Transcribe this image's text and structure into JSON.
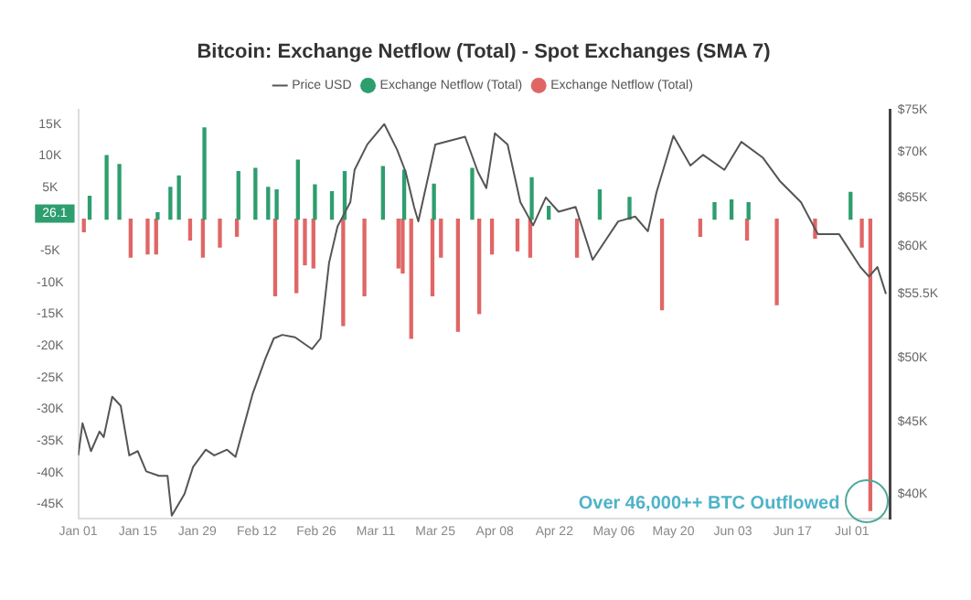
{
  "chart_data": {
    "type": "bar",
    "title": "Bitcoin: Exchange Netflow (Total) - Spot Exchanges (SMA 7)",
    "legend": "top",
    "marker": "none",
    "log": "y2",
    "xlim": [
      "--01-01",
      "--07-10"
    ],
    "xticks": [
      {
        "value": "--01-01",
        "label": "Jan 01"
      },
      {
        "value": "--01-15",
        "label": "Jan 15"
      },
      {
        "value": "--01-29",
        "label": "Jan 29"
      },
      {
        "value": "--02-12",
        "label": "Feb 12"
      },
      {
        "value": "--02-26",
        "label": "Feb 26"
      },
      {
        "value": "--03-11",
        "label": "Mar 11"
      },
      {
        "value": "--03-25",
        "label": "Mar 25"
      },
      {
        "value": "--04-08",
        "label": "Apr 08"
      },
      {
        "value": "--04-22",
        "label": "Apr 22"
      },
      {
        "value": "--05-06",
        "label": "May 06"
      },
      {
        "value": "--05-20",
        "label": "May 20"
      },
      {
        "value": "--06-03",
        "label": "Jun 03"
      },
      {
        "value": "--06-17",
        "label": "Jun 17"
      },
      {
        "value": "--07-01",
        "label": "Jul 01"
      }
    ],
    "ylim": [
      -47300,
      17200
    ],
    "yticks": [
      {
        "value": 15000,
        "label": "15K"
      },
      {
        "value": 10000,
        "label": "10K"
      },
      {
        "value": 5000,
        "label": "5K"
      },
      {
        "value": -5000,
        "label": "-5K"
      },
      {
        "value": -10000,
        "label": "-10K"
      },
      {
        "value": -15000,
        "label": "-15K"
      },
      {
        "value": -20000,
        "label": "-20K"
      },
      {
        "value": -25000,
        "label": "-25K"
      },
      {
        "value": -30000,
        "label": "-30K"
      },
      {
        "value": -35000,
        "label": "-35K"
      },
      {
        "value": -40000,
        "label": "-40K"
      },
      {
        "value": -45000,
        "label": "-45K"
      }
    ],
    "y2lim": [
      38400,
      75000
    ],
    "y2ticks": [
      {
        "value": 40000,
        "label": "$40K"
      },
      {
        "value": 45000,
        "label": "$45K"
      },
      {
        "value": 50000,
        "label": "$50K"
      },
      {
        "value": 55500,
        "label": "$55.5K"
      },
      {
        "value": 60000,
        "label": "$60K"
      },
      {
        "value": 65000,
        "label": "$65K"
      },
      {
        "value": 70000,
        "label": "$70K"
      },
      {
        "value": 75000,
        "label": "$75K"
      }
    ],
    "annotations": [
      {
        "text": "Over 46,000++ BTC Outflowed",
        "x": "--07-05",
        "y": -46000
      },
      "26.1"
    ],
    "series": [
      {
        "name": "Price USD",
        "type": "line",
        "axis": "y2",
        "color": "#555555",
        "x": [
          "--01-01",
          "--01-02",
          "--01-04",
          "--01-06",
          "--01-07",
          "--01-09",
          "--01-11",
          "--01-13",
          "--01-15",
          "--01-17",
          "--01-20",
          "--01-22",
          "--01-23",
          "--01-26",
          "--01-28",
          "--01-31",
          "--02-02",
          "--02-05",
          "--02-07",
          "--02-11",
          "--02-14",
          "--02-16",
          "--02-18",
          "--02-21",
          "--02-25",
          "--02-27",
          "--02-29",
          "--03-02",
          "--03-05",
          "--03-06",
          "--03-09",
          "--03-13",
          "--03-16",
          "--03-18",
          "--03-20",
          "--03-21",
          "--03-25",
          "--04-01",
          "--04-04",
          "--04-06",
          "--04-08",
          "--04-11",
          "--04-14",
          "--04-17",
          "--04-20",
          "--04-23",
          "--04-27",
          "--05-01",
          "--05-07",
          "--05-11",
          "--05-14",
          "--05-16",
          "--05-20",
          "--05-24",
          "--05-27",
          "--06-01",
          "--06-05",
          "--06-10",
          "--06-14",
          "--06-19",
          "--06-23",
          "--06-28",
          "--07-03",
          "--07-05",
          "--07-07",
          "--07-09"
        ],
        "values": [
          42600,
          44900,
          42900,
          44300,
          43900,
          46900,
          46200,
          42600,
          42900,
          41500,
          41200,
          41200,
          38600,
          40000,
          41800,
          43000,
          42600,
          43000,
          42500,
          47100,
          49900,
          51600,
          51900,
          51700,
          50700,
          51600,
          58400,
          62000,
          64500,
          68000,
          70900,
          73300,
          70300,
          67800,
          64000,
          62500,
          70900,
          71800,
          67800,
          66000,
          72200,
          70900,
          64500,
          62100,
          65000,
          63500,
          64000,
          58700,
          62500,
          63000,
          61500,
          65500,
          71900,
          68500,
          69700,
          68000,
          71200,
          69400,
          66800,
          64500,
          61200,
          61200,
          58000,
          57100,
          58000,
          55500
        ]
      },
      {
        "name": "Exchange Netflow (Total)",
        "color": "#2e9e6e",
        "x": [
          "--01-04",
          "--01-08",
          "--01-11",
          "--01-20",
          "--01-23",
          "--01-25",
          "--01-31",
          "--02-08",
          "--02-12",
          "--02-15",
          "--02-17",
          "--02-22",
          "--02-26",
          "--03-01",
          "--03-04",
          "--03-13",
          "--03-18",
          "--03-25",
          "--04-03",
          "--04-17",
          "--04-21",
          "--05-03",
          "--05-10",
          "--05-30",
          "--06-03",
          "--06-07",
          "--07-01"
        ],
        "values": [
          3600,
          10000,
          8600,
          1000,
          5000,
          6800,
          14400,
          7500,
          8000,
          5000,
          4600,
          9300,
          5400,
          4300,
          7500,
          8300,
          7700,
          5500,
          8000,
          6500,
          2000,
          4600,
          3400,
          2600,
          3000,
          2600,
          4200
        ]
      },
      {
        "name": "Exchange Netflow (Total)",
        "color": "#e06666",
        "x": [
          "--01-02",
          "--01-13",
          "--01-17",
          "--01-19",
          "--01-27",
          "--01-30",
          "--02-03",
          "--02-07",
          "--02-16",
          "--02-21",
          "--02-23",
          "--02-25",
          "--03-03",
          "--03-08",
          "--03-16",
          "--03-17",
          "--03-19",
          "--03-24",
          "--03-26",
          "--03-30",
          "--04-04",
          "--04-07",
          "--04-13",
          "--04-16",
          "--04-27",
          "--05-17",
          "--05-26",
          "--06-06",
          "--06-13",
          "--06-22",
          "--07-03",
          "--07-05"
        ],
        "values": [
          -2000,
          -6000,
          -5500,
          -5500,
          -3300,
          -6000,
          -4400,
          -2700,
          -12100,
          -11600,
          -7200,
          -7700,
          -16800,
          -12100,
          -7700,
          -8500,
          -18800,
          -12100,
          -6000,
          -17700,
          -14900,
          -5500,
          -5000,
          -6000,
          -6000,
          -14300,
          -2700,
          -3300,
          -13500,
          -3000,
          -4400,
          -46000
        ]
      }
    ]
  }
}
